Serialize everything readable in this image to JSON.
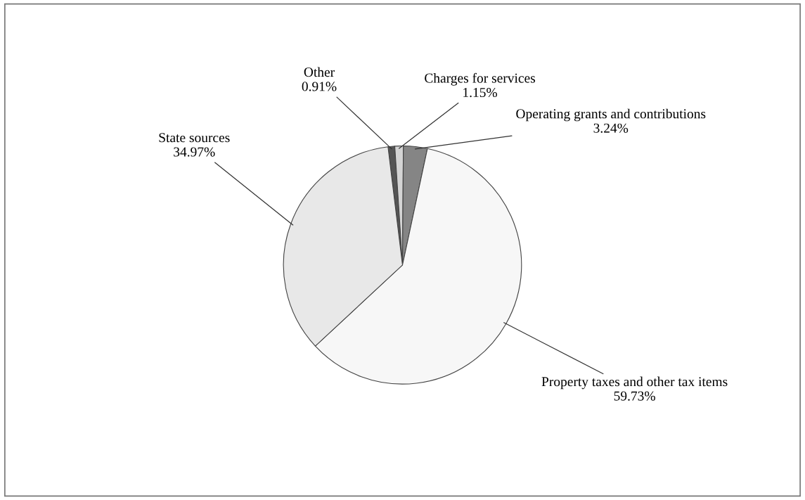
{
  "chart_data": {
    "type": "pie",
    "categories": [
      "Other",
      "Charges for services",
      "Operating grants and contributions",
      "Property taxes and other tax items",
      "State sources"
    ],
    "values": [
      0.91,
      1.15,
      3.24,
      59.73,
      34.97
    ],
    "colors": [
      "#555555",
      "#d4d4d4",
      "#858585",
      "#f7f7f7",
      "#e8e8e8"
    ],
    "value_labels": [
      "0.91%",
      "1.15%",
      "3.24%",
      "59.73%",
      "34.97%"
    ]
  }
}
